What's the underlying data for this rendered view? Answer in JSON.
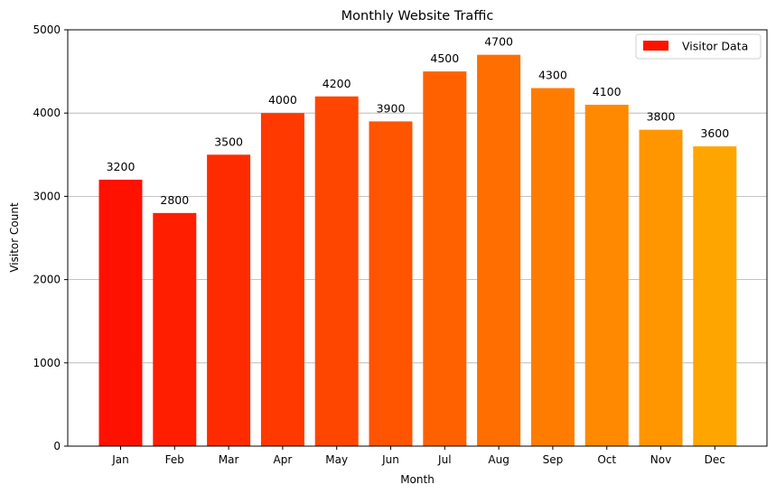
{
  "chart_data": {
    "type": "bar",
    "title": "Monthly Website Traffic",
    "xlabel": "Month",
    "ylabel": "Visitor Count",
    "categories": [
      "Jan",
      "Feb",
      "Mar",
      "Apr",
      "May",
      "Jun",
      "Jul",
      "Aug",
      "Sep",
      "Oct",
      "Nov",
      "Dec"
    ],
    "series": [
      {
        "name": "Visitor Data",
        "values": [
          3200,
          2800,
          3500,
          4000,
          4200,
          3900,
          4500,
          4700,
          4300,
          4100,
          3800,
          3600
        ]
      }
    ],
    "ylim": [
      0,
      5000
    ],
    "yticks": [
      0,
      1000,
      2000,
      3000,
      4000,
      5000
    ],
    "grid": "y",
    "legend_position": "top-right",
    "bar_colors": [
      "#ff1100",
      "#ff1e00",
      "#ff2b00",
      "#ff3900",
      "#ff4600",
      "#ff5400",
      "#ff6100",
      "#ff6e00",
      "#ff7c00",
      "#ff8900",
      "#ff9600",
      "#ffa500"
    ],
    "data_labels": [
      "3200",
      "2800",
      "3500",
      "4000",
      "4200",
      "3900",
      "4500",
      "4700",
      "4300",
      "4100",
      "3800",
      "3600"
    ]
  }
}
